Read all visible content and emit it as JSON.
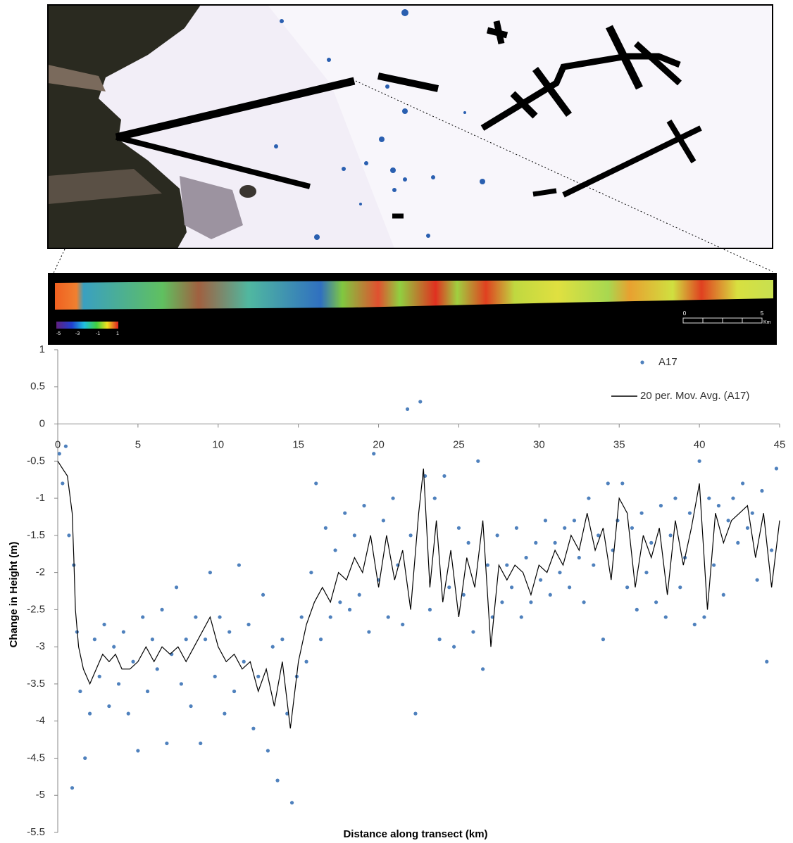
{
  "strip": {
    "colorbar_labels": [
      "-5",
      "-3",
      "-1",
      "1"
    ],
    "scale_labels": [
      "0",
      "5"
    ],
    "scale_unit": "Km"
  },
  "chart_data": {
    "type": "scatter",
    "xlabel": "Distance along transect (km)",
    "ylabel": "Change in Height (m)",
    "xlim": [
      0,
      45
    ],
    "xticks": [
      0,
      5,
      10,
      15,
      20,
      25,
      30,
      35,
      40,
      45
    ],
    "ylim": [
      -5.5,
      1
    ],
    "yticks": [
      1,
      0.5,
      0,
      -0.5,
      -1,
      -1.5,
      -2,
      -2.5,
      -3,
      -3.5,
      -4,
      -4.5,
      -5,
      -5.5
    ],
    "grid": false,
    "legend": "upper right",
    "series": [
      {
        "name": "A17",
        "color": "#4f81bd",
        "type": "scatter",
        "x": [
          0.1,
          0.3,
          0.5,
          0.7,
          0.9,
          1.0,
          1.2,
          1.4,
          1.7,
          2.0,
          2.3,
          2.6,
          2.9,
          3.2,
          3.5,
          3.8,
          4.1,
          4.4,
          4.7,
          5.0,
          5.3,
          5.6,
          5.9,
          6.2,
          6.5,
          6.8,
          7.1,
          7.4,
          7.7,
          8.0,
          8.3,
          8.6,
          8.9,
          9.2,
          9.5,
          9.8,
          10.1,
          10.4,
          10.7,
          11.0,
          11.3,
          11.6,
          11.9,
          12.2,
          12.5,
          12.8,
          13.1,
          13.4,
          13.7,
          14.0,
          14.3,
          14.6,
          14.9,
          15.2,
          15.5,
          15.8,
          16.1,
          16.4,
          16.7,
          17.0,
          17.3,
          17.6,
          17.9,
          18.2,
          18.5,
          18.8,
          19.1,
          19.4,
          19.7,
          20.0,
          20.3,
          20.6,
          20.9,
          21.2,
          21.5,
          21.8,
          22.0,
          22.3,
          22.6,
          22.9,
          23.2,
          23.5,
          23.8,
          24.1,
          24.4,
          24.7,
          25.0,
          25.3,
          25.6,
          25.9,
          26.2,
          26.5,
          26.8,
          27.1,
          27.4,
          27.7,
          28.0,
          28.3,
          28.6,
          28.9,
          29.2,
          29.5,
          29.8,
          30.1,
          30.4,
          30.7,
          31.0,
          31.3,
          31.6,
          31.9,
          32.2,
          32.5,
          32.8,
          33.1,
          33.4,
          33.7,
          34.0,
          34.3,
          34.6,
          34.9,
          35.2,
          35.5,
          35.8,
          36.1,
          36.4,
          36.7,
          37.0,
          37.3,
          37.6,
          37.9,
          38.2,
          38.5,
          38.8,
          39.1,
          39.4,
          39.7,
          40.0,
          40.3,
          40.6,
          40.9,
          41.2,
          41.5,
          41.8,
          42.1,
          42.4,
          42.7,
          43.0,
          43.3,
          43.6,
          43.9,
          44.2,
          44.5,
          44.8
        ],
        "values": [
          -0.4,
          -0.8,
          -0.3,
          -1.5,
          -4.9,
          -1.9,
          -2.8,
          -3.6,
          -4.5,
          -3.9,
          -2.9,
          -3.4,
          -2.7,
          -3.8,
          -3.0,
          -3.5,
          -2.8,
          -3.9,
          -3.2,
          -4.4,
          -2.6,
          -3.6,
          -2.9,
          -3.3,
          -2.5,
          -4.3,
          -3.1,
          -2.2,
          -3.5,
          -2.9,
          -3.8,
          -2.6,
          -4.3,
          -2.9,
          -2.0,
          -3.4,
          -2.6,
          -3.9,
          -2.8,
          -3.6,
          -1.9,
          -3.2,
          -2.7,
          -4.1,
          -3.4,
          -2.3,
          -4.4,
          -3.0,
          -4.8,
          -2.9,
          -3.9,
          -5.1,
          -3.4,
          -2.6,
          -3.2,
          -2.0,
          -0.8,
          -2.9,
          -1.4,
          -2.6,
          -1.7,
          -2.4,
          -1.2,
          -2.5,
          -1.5,
          -2.3,
          -1.1,
          -2.8,
          -0.4,
          -2.1,
          -1.3,
          -2.6,
          -1.0,
          -1.9,
          -2.7,
          0.2,
          -1.5,
          -3.9,
          0.3,
          -0.7,
          -2.5,
          -1.0,
          -2.9,
          -0.7,
          -2.2,
          -3.0,
          -1.4,
          -2.3,
          -1.6,
          -2.8,
          -0.5,
          -3.3,
          -1.9,
          -2.6,
          -1.5,
          -2.4,
          -1.9,
          -2.2,
          -1.4,
          -2.6,
          -1.8,
          -2.4,
          -1.6,
          -2.1,
          -1.3,
          -2.3,
          -1.6,
          -2.0,
          -1.4,
          -2.2,
          -1.3,
          -1.8,
          -2.4,
          -1.0,
          -1.9,
          -1.5,
          -2.9,
          -0.8,
          -1.7,
          -1.3,
          -0.8,
          -2.2,
          -1.4,
          -2.5,
          -1.2,
          -2.0,
          -1.6,
          -2.4,
          -1.1,
          -2.6,
          -1.5,
          -1.0,
          -2.2,
          -1.8,
          -1.2,
          -2.7,
          -0.5,
          -2.6,
          -1.0,
          -1.9,
          -1.1,
          -2.3,
          -1.3,
          -1.0,
          -1.6,
          -0.8,
          -1.4,
          -1.2,
          -2.1,
          -0.9,
          -3.2,
          -1.7,
          -0.6
        ]
      },
      {
        "name": "20 per. Mov. Avg. (A17)",
        "color": "#000000",
        "type": "line",
        "x": [
          0,
          0.3,
          0.6,
          0.9,
          1.0,
          1.1,
          1.3,
          1.6,
          2.0,
          2.4,
          2.8,
          3.2,
          3.6,
          4.0,
          4.5,
          5.0,
          5.5,
          6.0,
          6.5,
          7.0,
          7.5,
          8.0,
          8.5,
          9.0,
          9.5,
          10.0,
          10.5,
          11.0,
          11.5,
          12.0,
          12.5,
          13.0,
          13.5,
          14.0,
          14.5,
          15.0,
          15.5,
          16.0,
          16.5,
          17.0,
          17.5,
          18.0,
          18.5,
          19.0,
          19.5,
          20.0,
          20.5,
          21.0,
          21.5,
          22.0,
          22.5,
          22.8,
          23.2,
          23.6,
          24.0,
          24.5,
          25.0,
          25.5,
          26.0,
          26.5,
          27.0,
          27.5,
          28.0,
          28.5,
          29.0,
          29.5,
          30.0,
          30.5,
          31.0,
          31.5,
          32.0,
          32.5,
          33.0,
          33.5,
          34.0,
          34.5,
          35.0,
          35.5,
          36.0,
          36.5,
          37.0,
          37.5,
          38.0,
          38.5,
          39.0,
          39.5,
          40.0,
          40.5,
          41.0,
          41.5,
          42.0,
          42.5,
          43.0,
          43.5,
          44.0,
          44.5,
          45.0
        ],
        "values": [
          -0.5,
          -0.6,
          -0.7,
          -1.2,
          -1.8,
          -2.5,
          -3.0,
          -3.3,
          -3.5,
          -3.3,
          -3.1,
          -3.2,
          -3.1,
          -3.3,
          -3.3,
          -3.2,
          -3.0,
          -3.2,
          -3.0,
          -3.1,
          -3.0,
          -3.2,
          -3.0,
          -2.8,
          -2.6,
          -3.0,
          -3.2,
          -3.1,
          -3.3,
          -3.2,
          -3.6,
          -3.3,
          -3.8,
          -3.2,
          -4.1,
          -3.2,
          -2.7,
          -2.4,
          -2.2,
          -2.4,
          -2.0,
          -2.1,
          -1.8,
          -2.0,
          -1.5,
          -2.2,
          -1.5,
          -2.1,
          -1.7,
          -2.5,
          -1.2,
          -0.6,
          -2.2,
          -1.3,
          -2.4,
          -1.7,
          -2.6,
          -1.8,
          -2.2,
          -1.3,
          -3.0,
          -1.9,
          -2.1,
          -1.9,
          -2.0,
          -2.3,
          -1.9,
          -2.0,
          -1.7,
          -1.9,
          -1.5,
          -1.7,
          -1.2,
          -1.7,
          -1.4,
          -2.1,
          -1.0,
          -1.2,
          -2.2,
          -1.5,
          -1.8,
          -1.4,
          -2.3,
          -1.3,
          -1.9,
          -1.4,
          -0.8,
          -2.5,
          -1.2,
          -1.6,
          -1.3,
          -1.2,
          -1.1,
          -1.8,
          -1.2,
          -2.2,
          -1.3
        ]
      }
    ]
  }
}
